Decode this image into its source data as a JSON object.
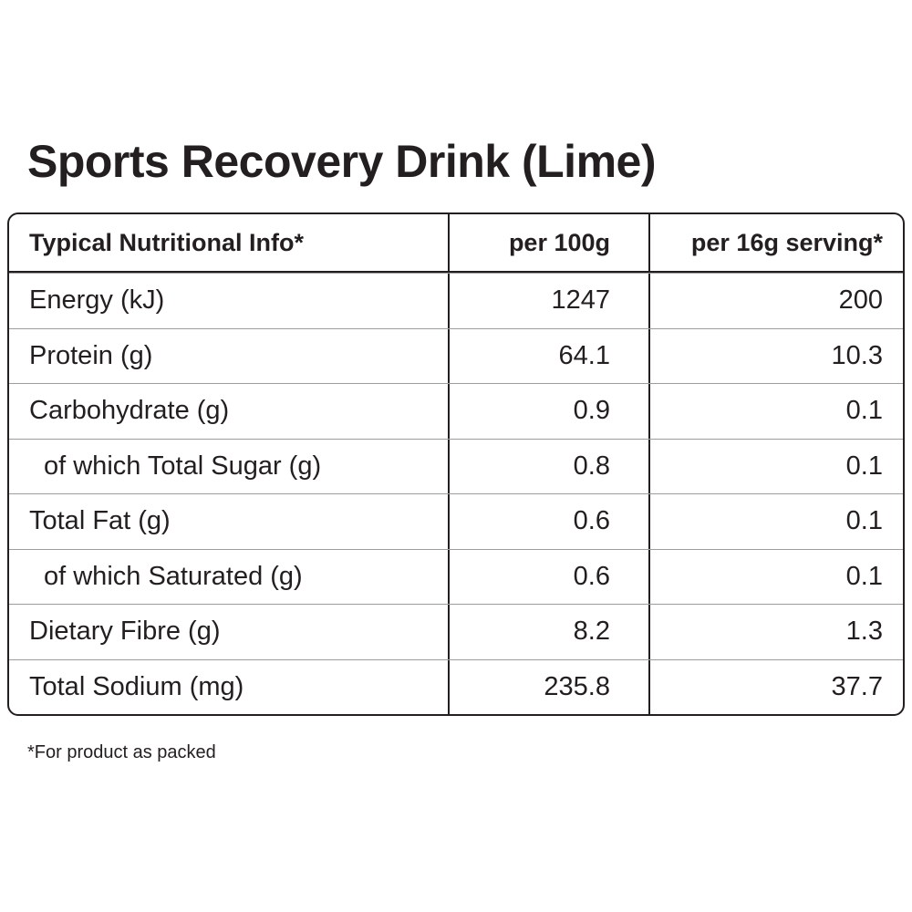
{
  "title": "Sports Recovery Drink (Lime)",
  "table": {
    "headers": [
      "Typical Nutritional Info*",
      "per 100g",
      "per 16g serving*"
    ],
    "rows": [
      {
        "label": "Energy (kJ)",
        "per100": "1247",
        "perServing": "200",
        "indent": false
      },
      {
        "label": "Protein (g)",
        "per100": "64.1",
        "perServing": "10.3",
        "indent": false
      },
      {
        "label": "Carbohydrate (g)",
        "per100": "0.9",
        "perServing": "0.1",
        "indent": false
      },
      {
        "label": "of which Total Sugar (g)",
        "per100": "0.8",
        "perServing": "0.1",
        "indent": true
      },
      {
        "label": "Total Fat (g)",
        "per100": "0.6",
        "perServing": "0.1",
        "indent": false
      },
      {
        "label": "of which Saturated (g)",
        "per100": "0.6",
        "perServing": "0.1",
        "indent": true
      },
      {
        "label": "Dietary Fibre (g)",
        "per100": "8.2",
        "perServing": "1.3",
        "indent": false
      },
      {
        "label": "Total Sodium (mg)",
        "per100": "235.8",
        "perServing": "37.7",
        "indent": false
      }
    ]
  },
  "footnote": "*For product as packed"
}
